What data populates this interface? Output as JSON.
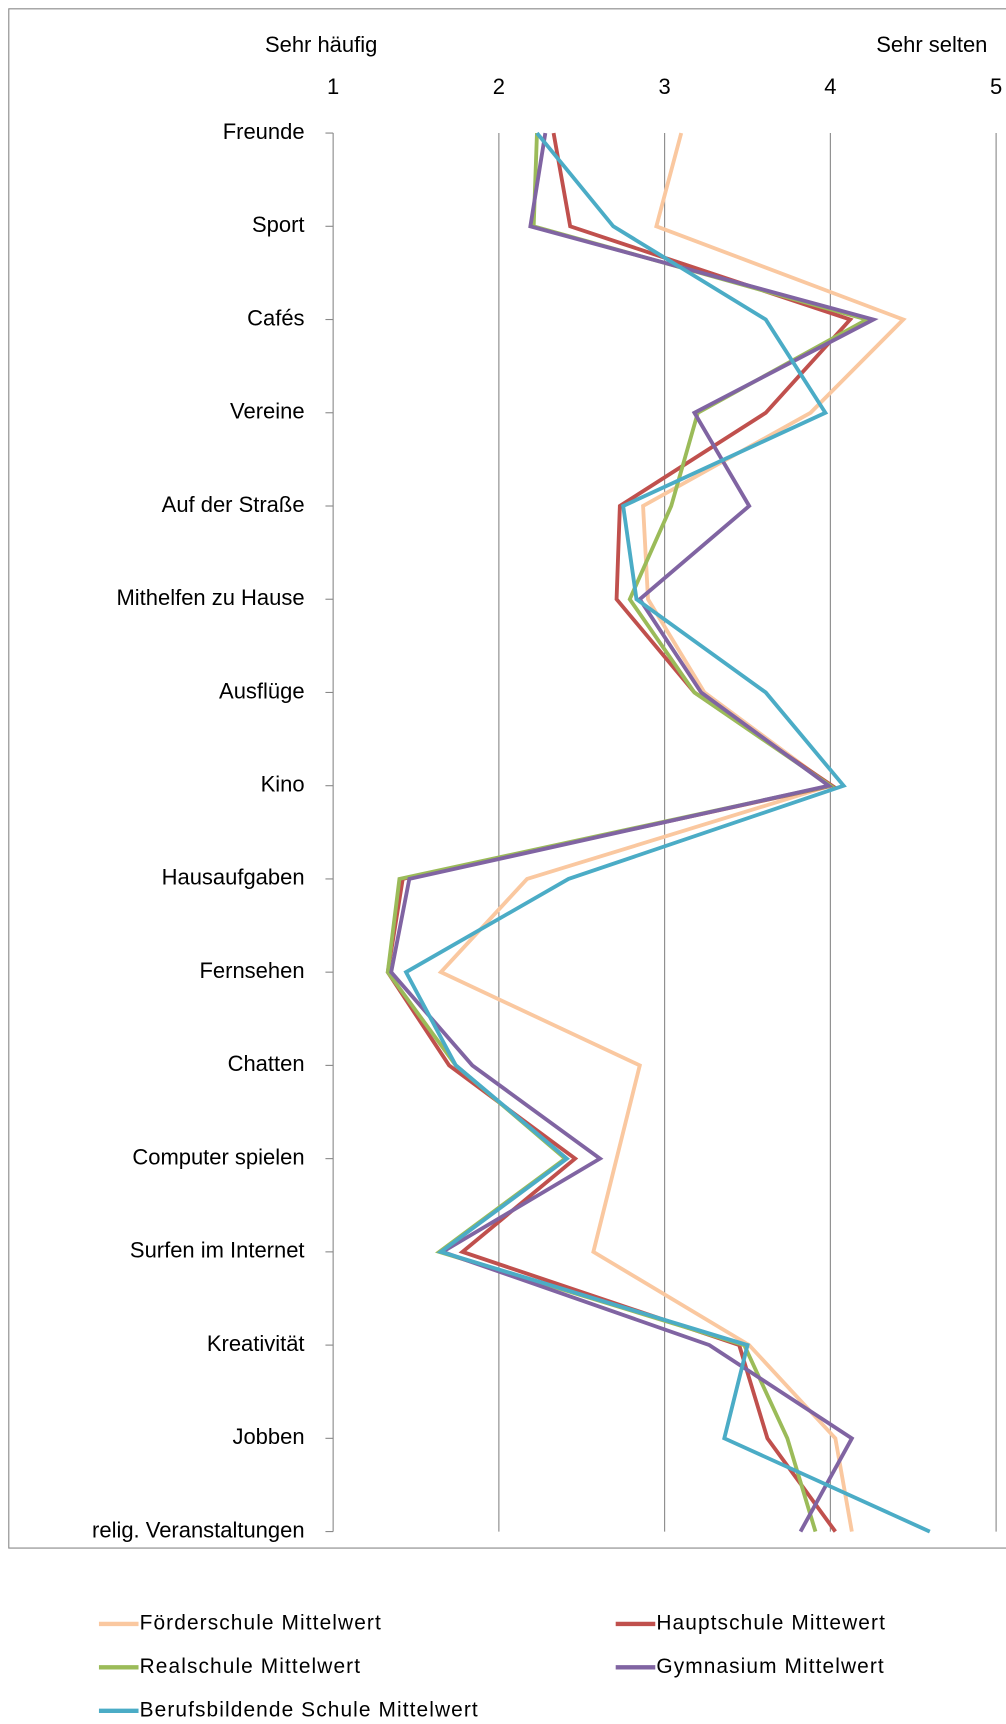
{
  "chart_data": {
    "type": "line",
    "orientation": "horizontal",
    "annotations": [
      "Sehr häufig",
      "Sehr selten"
    ],
    "categories": [
      "Freunde",
      "Sport",
      "Cafés",
      "Vereine",
      "Auf der Straße",
      "Mithelfen zu Hause",
      "Ausflüge",
      "Kino",
      "Hausaufgaben",
      "Fernsehen",
      "Chatten",
      "Computer spielen",
      "Surfen im Internet",
      "Kreativität",
      "Jobben",
      "relig. Veranstaltungen"
    ],
    "xlim": [
      1,
      5
    ],
    "xticks": [
      1,
      2,
      3,
      4,
      5
    ],
    "grid": true,
    "legend": "bottom",
    "series": [
      {
        "name": "Förderschule Mittelwert",
        "color": "#fac8a0",
        "values": [
          3.1,
          2.95,
          4.44,
          3.88,
          2.87,
          2.9,
          3.24,
          4.0,
          2.17,
          1.65,
          2.85,
          2.71,
          2.57,
          3.51,
          4.03,
          4.13
        ]
      },
      {
        "name": "Hauptschule Mittewert",
        "color": "#c0504d",
        "values": [
          2.33,
          2.43,
          4.12,
          3.61,
          2.73,
          2.71,
          3.18,
          4.01,
          1.42,
          1.33,
          1.7,
          2.46,
          1.78,
          3.45,
          3.62,
          4.03
        ]
      },
      {
        "name": "Realschule Mittelwert",
        "color": "#9bbb59",
        "values": [
          2.23,
          2.21,
          4.22,
          3.2,
          3.04,
          2.79,
          3.18,
          4.0,
          1.4,
          1.33,
          1.74,
          2.4,
          1.64,
          3.48,
          3.74,
          3.91
        ]
      },
      {
        "name": "Gymnasium Mittelwert",
        "color": "#8064a2",
        "values": [
          2.28,
          2.19,
          4.26,
          3.18,
          3.51,
          2.85,
          3.22,
          3.99,
          1.46,
          1.35,
          1.84,
          2.61,
          1.66,
          3.27,
          4.13,
          3.82
        ]
      },
      {
        "name": "Berufsbildende Schule Mittelwert",
        "color": "#4bacc6",
        "values": [
          2.23,
          2.69,
          3.61,
          3.97,
          2.75,
          2.83,
          3.61,
          4.08,
          2.42,
          1.44,
          1.74,
          2.41,
          1.65,
          3.5,
          3.36,
          4.6
        ]
      }
    ]
  }
}
